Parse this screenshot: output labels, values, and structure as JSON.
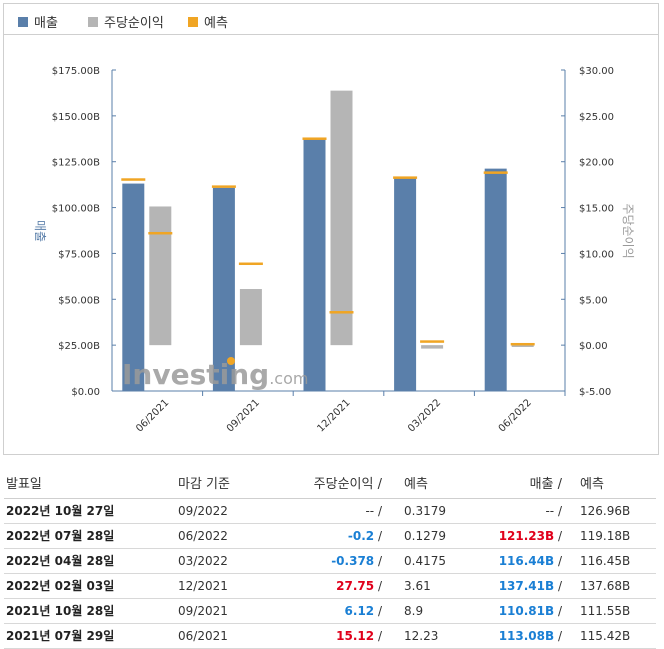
{
  "legend": {
    "revenue": "매출",
    "eps": "주당순이익",
    "forecast": "예측"
  },
  "colors": {
    "revenue": "#5a7faa",
    "eps": "#b5b5b5",
    "forecast": "#f0a524",
    "positive": "#e0001b",
    "negative": "#1a7fd4"
  },
  "watermark": "Investing.com",
  "chart_data": {
    "type": "bar",
    "categories": [
      "06/2021",
      "09/2021",
      "12/2021",
      "03/2022",
      "06/2022"
    ],
    "series": [
      {
        "name": "매출",
        "axis": "left",
        "values": [
          113.08,
          110.81,
          137.41,
          116.44,
          121.23
        ],
        "forecast": [
          115.42,
          111.55,
          137.68,
          116.45,
          119.18
        ]
      },
      {
        "name": "주당순이익",
        "axis": "right",
        "values": [
          15.12,
          6.12,
          27.75,
          -0.378,
          -0.2
        ],
        "forecast": [
          12.23,
          8.9,
          3.61,
          0.4175,
          0.1279
        ]
      }
    ],
    "ylabel": "매출",
    "y2label": "주당순이익",
    "ylim": [
      0,
      175
    ],
    "y2lim": [
      -5,
      30
    ],
    "yticks": [
      "$0.00",
      "$25.00B",
      "$50.00B",
      "$75.00B",
      "$100.00B",
      "$125.00B",
      "$150.00B",
      "$175.00B"
    ],
    "y2ticks": [
      "$-5.00",
      "$0.00",
      "$5.00",
      "$10.00",
      "$15.00",
      "$20.00",
      "$25.00",
      "$30.00"
    ],
    "legend": "top-left",
    "grid": false
  },
  "table": {
    "headers": {
      "date": "발표일",
      "period": "마감 기준",
      "eps": "주당순이익",
      "eps_forecast": "예측",
      "revenue": "매출",
      "revenue_forecast": "예측"
    },
    "rows": [
      {
        "date": "2022년 10월 27일",
        "period": "09/2022",
        "eps": "--",
        "eps_forecast": "0.3179",
        "revenue": "--",
        "revenue_forecast": "126.96B",
        "eps_state": "flat",
        "rev_state": "flat"
      },
      {
        "date": "2022년 07월 28일",
        "period": "06/2022",
        "eps": "-0.2",
        "eps_forecast": "0.1279",
        "revenue": "121.23B",
        "revenue_forecast": "119.18B",
        "eps_state": "neg",
        "rev_state": "pos"
      },
      {
        "date": "2022년 04월 28일",
        "period": "03/2022",
        "eps": "-0.378",
        "eps_forecast": "0.4175",
        "revenue": "116.44B",
        "revenue_forecast": "116.45B",
        "eps_state": "neg",
        "rev_state": "neg"
      },
      {
        "date": "2022년 02월 03일",
        "period": "12/2021",
        "eps": "27.75",
        "eps_forecast": "3.61",
        "revenue": "137.41B",
        "revenue_forecast": "137.68B",
        "eps_state": "pos",
        "rev_state": "neg"
      },
      {
        "date": "2021년 10월 28일",
        "period": "09/2021",
        "eps": "6.12",
        "eps_forecast": "8.9",
        "revenue": "110.81B",
        "revenue_forecast": "111.55B",
        "eps_state": "neg",
        "rev_state": "neg"
      },
      {
        "date": "2021년 07월 29일",
        "period": "06/2021",
        "eps": "15.12",
        "eps_forecast": "12.23",
        "revenue": "113.08B",
        "revenue_forecast": "115.42B",
        "eps_state": "pos",
        "rev_state": "neg"
      }
    ]
  }
}
